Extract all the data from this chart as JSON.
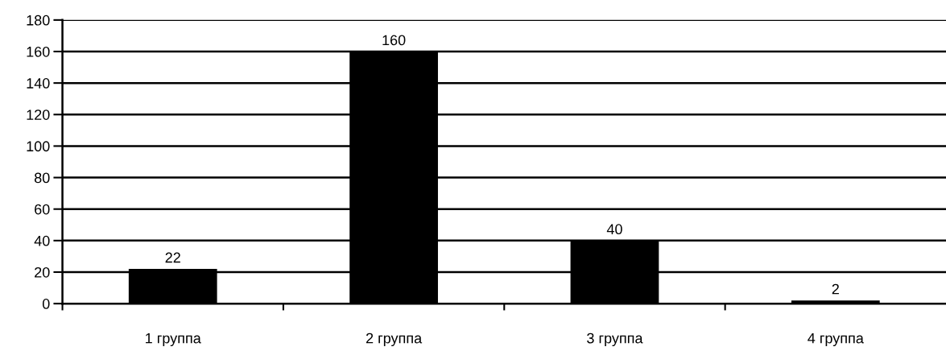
{
  "chart_data": {
    "type": "bar",
    "categories": [
      "1 группа",
      "2 группа",
      "3 группа",
      "4 группа"
    ],
    "values": [
      22,
      160,
      40,
      2
    ],
    "color": "#000000",
    "ylim": [
      0,
      180
    ],
    "yticks": [
      0,
      20,
      40,
      60,
      80,
      100,
      120,
      140,
      160,
      180
    ],
    "grid": "y",
    "data_labels": true,
    "legend": false
  }
}
